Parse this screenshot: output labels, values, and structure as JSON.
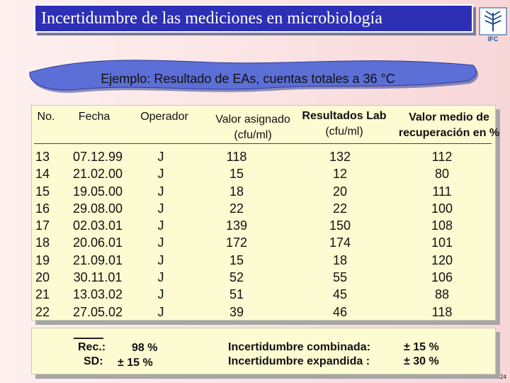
{
  "title": "Incertidumbre de las mediciones en microbiología",
  "logo_text": "IFC",
  "subtitle": "Ejemplo: Resultado de EAs, cuentas totales a 36 °C",
  "headers": {
    "no": "No.",
    "fecha": "Fecha",
    "operador": "Operador",
    "valor_asignado_1": "Valor asignado",
    "valor_asignado_2": "(cfu/ml)",
    "resultados_1": "Resultados Lab",
    "resultados_2": "(cfu/ml)",
    "recuperacion_1": "Valor medio de",
    "recuperacion_2": "recuperación en %"
  },
  "rows": [
    {
      "no": "13",
      "fecha": "07.12.99",
      "operador": "J",
      "asignado": "118",
      "resultado": "132",
      "recuperacion": "112"
    },
    {
      "no": "14",
      "fecha": "21.02.00",
      "operador": "J",
      "asignado": "15",
      "resultado": "12",
      "recuperacion": "80"
    },
    {
      "no": "15",
      "fecha": "19.05.00",
      "operador": "J",
      "asignado": "18",
      "resultado": "20",
      "recuperacion": "111"
    },
    {
      "no": "16",
      "fecha": "29.08.00",
      "operador": "J",
      "asignado": "22",
      "resultado": "22",
      "recuperacion": "100"
    },
    {
      "no": "17",
      "fecha": "02.03.01",
      "operador": "J",
      "asignado": "139",
      "resultado": "150",
      "recuperacion": "108"
    },
    {
      "no": "18",
      "fecha": "20.06.01",
      "operador": "J",
      "asignado": "172",
      "resultado": "174",
      "recuperacion": "101"
    },
    {
      "no": "19",
      "fecha": "21.09.01",
      "operador": "J",
      "asignado": "15",
      "resultado": "18",
      "recuperacion": "120"
    },
    {
      "no": "20",
      "fecha": "30.11.01",
      "operador": "J",
      "asignado": "52",
      "resultado": "55",
      "recuperacion": "106"
    },
    {
      "no": "21",
      "fecha": "13.03.02",
      "operador": "J",
      "asignado": "51",
      "resultado": "45",
      "recuperacion": "88"
    },
    {
      "no": "22",
      "fecha": "27.05.02",
      "operador": "J",
      "asignado": "39",
      "resultado": "46",
      "recuperacion": "118"
    }
  ],
  "footer": {
    "rec_label": "Rec.:",
    "rec_value": "98 %",
    "sd_label": "SD:",
    "sd_value": "± 15 %",
    "combinada_label": "Incertidumbre combinada:",
    "combinada_value": "± 15 %",
    "expandida_label": "Incertidumbre expandida :",
    "expandida_value": "± 30 %"
  },
  "page_number": "24",
  "colors": {
    "title_bg": "#2d2fb5",
    "banner_fill": "#5b6fd6",
    "panel_bg": "#fdfbd2",
    "logo_blue": "#1c4f97"
  }
}
